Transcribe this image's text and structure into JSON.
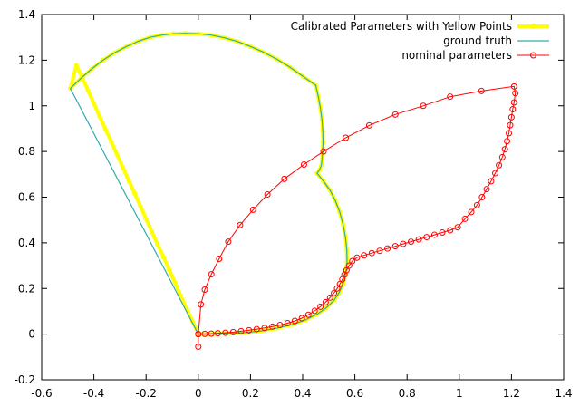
{
  "chart_data": {
    "type": "line",
    "title": "",
    "xlabel": "",
    "ylabel": "",
    "xlim": [
      -0.6,
      1.4
    ],
    "ylim": [
      -0.2,
      1.4
    ],
    "xticks": [
      -0.6,
      -0.4,
      -0.2,
      0,
      0.2,
      0.4,
      0.6,
      0.8,
      1,
      1.2,
      1.4
    ],
    "xtick_labels": [
      "-0.6",
      "-0.4",
      "-0.2",
      "0",
      "0.2",
      "0.4",
      "0.6",
      "0.8",
      "1",
      "1.2",
      "1.4"
    ],
    "yticks": [
      -0.2,
      0,
      0.2,
      0.4,
      0.6,
      0.8,
      1,
      1.2,
      1.4
    ],
    "ytick_labels": [
      "-0.2",
      "0",
      "0.2",
      "0.4",
      "0.6",
      "0.8",
      "1",
      "1.2",
      "1.4"
    ],
    "grid": false,
    "legend_position": "top-right",
    "series": [
      {
        "name": "Calibrated Parameters with Yellow Points",
        "color": "#ffff00",
        "marker": "filled-circle",
        "x": [
          0.0,
          -0.022,
          -0.045,
          -0.067,
          -0.089,
          -0.111,
          -0.133,
          -0.156,
          -0.178,
          -0.2,
          -0.222,
          -0.244,
          -0.267,
          -0.289,
          -0.311,
          -0.333,
          -0.356,
          -0.378,
          -0.4,
          -0.422,
          -0.444,
          -0.467,
          -0.49,
          -0.45,
          -0.41,
          -0.365,
          -0.32,
          -0.275,
          -0.23,
          -0.185,
          -0.14,
          -0.095,
          -0.05,
          0.0,
          0.05,
          0.1,
          0.15,
          0.2,
          0.25,
          0.3,
          0.35,
          0.4,
          0.45,
          0.46,
          0.468,
          0.474,
          0.477,
          0.478,
          0.476,
          0.472,
          0.465,
          0.455,
          0.48,
          0.505,
          0.525,
          0.542,
          0.555,
          0.564,
          0.569,
          0.57,
          0.565,
          0.555,
          0.54,
          0.52,
          0.49,
          0.455,
          0.41,
          0.36,
          0.3,
          0.24,
          0.18,
          0.12,
          0.06,
          0.0
        ],
        "y": [
          0.0,
          0.056,
          0.112,
          0.168,
          0.225,
          0.281,
          0.337,
          0.393,
          0.449,
          0.505,
          0.561,
          0.617,
          0.674,
          0.73,
          0.786,
          0.842,
          0.898,
          0.954,
          1.01,
          1.066,
          1.122,
          1.178,
          1.076,
          1.12,
          1.16,
          1.2,
          1.233,
          1.26,
          1.283,
          1.3,
          1.31,
          1.316,
          1.318,
          1.316,
          1.31,
          1.298,
          1.282,
          1.26,
          1.235,
          1.205,
          1.17,
          1.13,
          1.09,
          1.04,
          0.99,
          0.94,
          0.89,
          0.84,
          0.79,
          0.74,
          0.72,
          0.705,
          0.67,
          0.63,
          0.585,
          0.535,
          0.48,
          0.425,
          0.37,
          0.315,
          0.265,
          0.22,
          0.182,
          0.148,
          0.115,
          0.087,
          0.062,
          0.042,
          0.026,
          0.014,
          0.007,
          0.003,
          0.001,
          0.0
        ]
      },
      {
        "name": "ground truth",
        "color": "#33aaaa",
        "marker": "none",
        "x": [
          0.0,
          -0.49,
          -0.45,
          -0.41,
          -0.365,
          -0.32,
          -0.275,
          -0.23,
          -0.185,
          -0.14,
          -0.095,
          -0.05,
          0.0,
          0.05,
          0.1,
          0.15,
          0.2,
          0.25,
          0.3,
          0.35,
          0.4,
          0.45,
          0.46,
          0.468,
          0.474,
          0.477,
          0.478,
          0.476,
          0.472,
          0.465,
          0.455,
          0.48,
          0.505,
          0.525,
          0.542,
          0.555,
          0.564,
          0.569,
          0.57,
          0.565,
          0.555,
          0.54,
          0.52,
          0.49,
          0.455,
          0.41,
          0.36,
          0.3,
          0.24,
          0.18,
          0.12,
          0.06,
          0.0
        ],
        "y": [
          0.0,
          1.076,
          1.12,
          1.16,
          1.2,
          1.233,
          1.26,
          1.283,
          1.3,
          1.31,
          1.316,
          1.318,
          1.316,
          1.31,
          1.298,
          1.282,
          1.26,
          1.235,
          1.205,
          1.17,
          1.13,
          1.09,
          1.04,
          0.99,
          0.94,
          0.89,
          0.84,
          0.79,
          0.74,
          0.72,
          0.705,
          0.67,
          0.63,
          0.585,
          0.535,
          0.48,
          0.425,
          0.37,
          0.315,
          0.265,
          0.22,
          0.182,
          0.148,
          0.115,
          0.087,
          0.062,
          0.042,
          0.026,
          0.014,
          0.007,
          0.003,
          0.001,
          0.0
        ]
      },
      {
        "name": "nominal parameters",
        "color": "#ff0000",
        "marker": "open-circle",
        "x": [
          0.0,
          0.0,
          0.01,
          0.025,
          0.05,
          0.08,
          0.115,
          0.16,
          0.21,
          0.265,
          0.33,
          0.405,
          0.48,
          0.565,
          0.655,
          0.755,
          0.862,
          0.965,
          1.085,
          1.21,
          1.215,
          1.21,
          1.205,
          1.2,
          1.195,
          1.19,
          1.183,
          1.175,
          1.165,
          1.152,
          1.138,
          1.122,
          1.105,
          1.087,
          1.068,
          1.046,
          1.022,
          0.994,
          0.965,
          0.935,
          0.905,
          0.875,
          0.845,
          0.815,
          0.785,
          0.755,
          0.725,
          0.695,
          0.665,
          0.635,
          0.608,
          0.59,
          0.578,
          0.568,
          0.56,
          0.552,
          0.543,
          0.532,
          0.52,
          0.505,
          0.488,
          0.468,
          0.446,
          0.422,
          0.397,
          0.37,
          0.342,
          0.313,
          0.284,
          0.254,
          0.224,
          0.194,
          0.164,
          0.134,
          0.104,
          0.075,
          0.05,
          0.025,
          0.0
        ],
        "y": [
          -0.055,
          0.0,
          0.13,
          0.195,
          0.262,
          0.33,
          0.405,
          0.478,
          0.545,
          0.612,
          0.68,
          0.743,
          0.8,
          0.86,
          0.914,
          0.962,
          1.0,
          1.04,
          1.065,
          1.085,
          1.055,
          1.015,
          0.985,
          0.95,
          0.915,
          0.88,
          0.845,
          0.81,
          0.775,
          0.74,
          0.705,
          0.67,
          0.635,
          0.6,
          0.565,
          0.535,
          0.505,
          0.468,
          0.455,
          0.445,
          0.435,
          0.425,
          0.415,
          0.405,
          0.395,
          0.385,
          0.375,
          0.365,
          0.355,
          0.345,
          0.335,
          0.32,
          0.3,
          0.28,
          0.26,
          0.24,
          0.22,
          0.2,
          0.18,
          0.16,
          0.14,
          0.12,
          0.102,
          0.085,
          0.07,
          0.058,
          0.048,
          0.04,
          0.033,
          0.027,
          0.022,
          0.017,
          0.013,
          0.009,
          0.006,
          0.004,
          0.002,
          0.001,
          0.0
        ]
      }
    ]
  }
}
